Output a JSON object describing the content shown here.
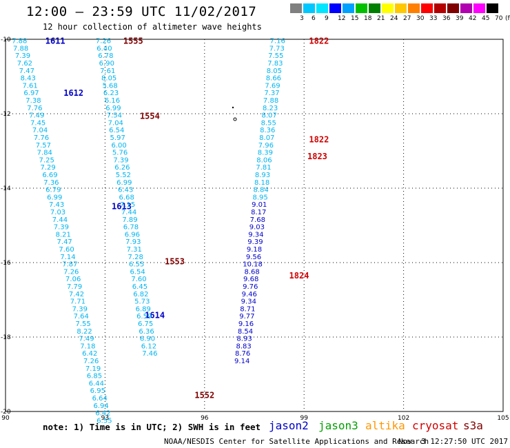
{
  "header": {
    "title": "12:00 – 23:59 UTC 11/02/2017",
    "subtitle": "12 hour collection of altimeter wave heights"
  },
  "scale": {
    "labels": [
      "3",
      "6",
      "9",
      "12",
      "15",
      "18",
      "21",
      "24",
      "27",
      "30",
      "33",
      "36",
      "39",
      "42",
      "45",
      "70",
      "(ft)"
    ],
    "colors": [
      "#808080",
      "#00c8ff",
      "#00e6ff",
      "#0000ff",
      "#00a0ff",
      "#00c000",
      "#008000",
      "#ffff00",
      "#ffc800",
      "#ff8000",
      "#ff0000",
      "#b40000",
      "#800000",
      "#b000b0",
      "#ff00ff",
      "#000000"
    ]
  },
  "map": {
    "lon_ticks": [
      "90",
      "93",
      "96",
      "99",
      "102",
      "105"
    ],
    "lat_ticks": [
      "-10",
      "-12",
      "-14",
      "-16",
      "-18",
      "-20"
    ],
    "lon_range": [
      90,
      105
    ],
    "lat_range": [
      -20,
      -10
    ]
  },
  "tracks": [
    {
      "id": "1611",
      "color": "#00b4f0",
      "label_color": "#0000c8",
      "label": {
        "text": "1611",
        "lon": 91.2,
        "lat": -10.03
      },
      "points": [
        {
          "v": "7.88",
          "lon": 90.42,
          "lat": -10.03
        },
        {
          "v": "7.88",
          "lon": 90.46,
          "lat": -10.23
        },
        {
          "v": "7.39",
          "lon": 90.52,
          "lat": -10.43
        },
        {
          "v": "7.62",
          "lon": 90.58,
          "lat": -10.63
        },
        {
          "v": "7.47",
          "lon": 90.64,
          "lat": -10.83
        },
        {
          "v": "8.43",
          "lon": 90.68,
          "lat": -11.03
        },
        {
          "v": "7.61",
          "lon": 90.74,
          "lat": -11.23
        },
        {
          "v": "6.97",
          "lon": 90.78,
          "lat": -11.43
        },
        {
          "v": "7.38",
          "lon": 90.84,
          "lat": -11.63
        },
        {
          "v": "7.76",
          "lon": 90.88,
          "lat": -11.83
        },
        {
          "v": "7.49",
          "lon": 90.94,
          "lat": -12.03
        },
        {
          "v": "7.45",
          "lon": 90.98,
          "lat": -12.23
        },
        {
          "v": "7.04",
          "lon": 91.04,
          "lat": -12.43
        },
        {
          "v": "7.76",
          "lon": 91.08,
          "lat": -12.63
        },
        {
          "v": "7.57",
          "lon": 91.14,
          "lat": -12.83
        },
        {
          "v": "7.84",
          "lon": 91.18,
          "lat": -13.03
        },
        {
          "v": "7.25",
          "lon": 91.24,
          "lat": -13.23
        },
        {
          "v": "7.29",
          "lon": 91.28,
          "lat": -13.43
        },
        {
          "v": "6.69",
          "lon": 91.34,
          "lat": -13.63
        },
        {
          "v": "7.36",
          "lon": 91.38,
          "lat": -13.83
        },
        {
          "v": "6.79",
          "lon": 91.44,
          "lat": -14.03
        },
        {
          "v": "6.99",
          "lon": 91.48,
          "lat": -14.23
        },
        {
          "v": "7.43",
          "lon": 91.54,
          "lat": -14.43
        },
        {
          "v": "7.03",
          "lon": 91.58,
          "lat": -14.63
        },
        {
          "v": "7.44",
          "lon": 91.64,
          "lat": -14.83
        },
        {
          "v": "7.39",
          "lon": 91.68,
          "lat": -15.03
        },
        {
          "v": "8.21",
          "lon": 91.74,
          "lat": -15.23
        },
        {
          "v": "7.47",
          "lon": 91.78,
          "lat": -15.43
        },
        {
          "v": "7.60",
          "lon": 91.84,
          "lat": -15.63
        },
        {
          "v": "7.14",
          "lon": 91.88,
          "lat": -15.83
        },
        {
          "v": "7.87",
          "lon": 91.94,
          "lat": -16.03
        }
      ]
    },
    {
      "id": "1612",
      "color": "#00b4f0",
      "label_color": "#0000c8",
      "label": {
        "text": "1612",
        "lon": 91.75,
        "lat": -11.43
      },
      "points": []
    },
    {
      "id": "1613",
      "color": "#00b4f0",
      "label_color": "#0000c8",
      "label": {
        "text": "1613",
        "lon": 93.2,
        "lat": -14.47
      },
      "points": [
        {
          "v": "7.26",
          "lon": 91.98,
          "lat": -16.23
        },
        {
          "v": "7.06",
          "lon": 92.04,
          "lat": -16.43
        },
        {
          "v": "7.79",
          "lon": 92.08,
          "lat": -16.63
        },
        {
          "v": "7.42",
          "lon": 92.14,
          "lat": -16.83
        },
        {
          "v": "7.71",
          "lon": 92.18,
          "lat": -17.03
        },
        {
          "v": "7.39",
          "lon": 92.24,
          "lat": -17.23
        },
        {
          "v": "7.64",
          "lon": 92.28,
          "lat": -17.43
        },
        {
          "v": "7.55",
          "lon": 92.34,
          "lat": -17.63
        },
        {
          "v": "8.22",
          "lon": 92.38,
          "lat": -17.83
        },
        {
          "v": "7.49",
          "lon": 92.44,
          "lat": -18.03
        },
        {
          "v": "7.18",
          "lon": 92.48,
          "lat": -18.23
        },
        {
          "v": "6.42",
          "lon": 92.54,
          "lat": -18.43
        },
        {
          "v": "7.26",
          "lon": 92.58,
          "lat": -18.63
        },
        {
          "v": "7.19",
          "lon": 92.64,
          "lat": -18.83
        },
        {
          "v": "6.85",
          "lon": 92.68,
          "lat": -19.03
        },
        {
          "v": "6.44",
          "lon": 92.74,
          "lat": -19.23
        },
        {
          "v": "6.95",
          "lon": 92.78,
          "lat": -19.43
        },
        {
          "v": "6.64",
          "lon": 92.84,
          "lat": -19.63
        },
        {
          "v": "6.94",
          "lon": 92.88,
          "lat": -19.83
        },
        {
          "v": "6.42",
          "lon": 92.94,
          "lat": -20.03
        },
        {
          "v": "6.55",
          "lon": 92.98,
          "lat": -20.23
        }
      ]
    },
    {
      "id": "1614",
      "color": "#00b4f0",
      "label_color": "#0000c8",
      "label": {
        "text": "1614",
        "lon": 94.2,
        "lat": -17.4
      },
      "points": []
    },
    {
      "id": "1555",
      "color": "#00b4f0",
      "label_color": "#800000",
      "label": {
        "text": "1555",
        "lon": 93.55,
        "lat": -10.03
      },
      "points": [
        {
          "v": "7.26",
          "lon": 92.95,
          "lat": -10.03
        },
        {
          "v": "6.40",
          "lon": 92.98,
          "lat": -10.23
        },
        {
          "v": "6.78",
          "lon": 93.02,
          "lat": -10.43
        },
        {
          "v": "6.90",
          "lon": 93.05,
          "lat": -10.63
        },
        {
          "v": "7.61",
          "lon": 93.08,
          "lat": -10.83
        },
        {
          "v": "8.05",
          "lon": 93.12,
          "lat": -11.03
        },
        {
          "v": "5.68",
          "lon": 93.15,
          "lat": -11.23
        },
        {
          "v": "6.23",
          "lon": 93.18,
          "lat": -11.43
        },
        {
          "v": "6.16",
          "lon": 93.22,
          "lat": -11.63
        },
        {
          "v": "6.99",
          "lon": 93.25,
          "lat": -11.83
        }
      ]
    },
    {
      "id": "1554",
      "color": "#00b4f0",
      "label_color": "#800000",
      "label": {
        "text": "1554",
        "lon": 94.05,
        "lat": -12.05
      },
      "points": [
        {
          "v": "7.54",
          "lon": 93.28,
          "lat": -12.03
        },
        {
          "v": "7.04",
          "lon": 93.32,
          "lat": -12.23
        },
        {
          "v": "6.54",
          "lon": 93.35,
          "lat": -12.43
        },
        {
          "v": "5.97",
          "lon": 93.38,
          "lat": -12.63
        },
        {
          "v": "6.00",
          "lon": 93.42,
          "lat": -12.83
        },
        {
          "v": "5.76",
          "lon": 93.45,
          "lat": -13.03
        },
        {
          "v": "7.39",
          "lon": 93.48,
          "lat": -13.23
        },
        {
          "v": "6.26",
          "lon": 93.52,
          "lat": -13.43
        },
        {
          "v": "5.52",
          "lon": 93.55,
          "lat": -13.63
        },
        {
          "v": "6.99",
          "lon": 93.58,
          "lat": -13.83
        },
        {
          "v": "6.43",
          "lon": 93.62,
          "lat": -14.03
        },
        {
          "v": "6.68",
          "lon": 93.65,
          "lat": -14.23
        },
        {
          "v": "7.15",
          "lon": 93.68,
          "lat": -14.43
        },
        {
          "v": "7.44",
          "lon": 93.72,
          "lat": -14.63
        },
        {
          "v": "7.89",
          "lon": 93.75,
          "lat": -14.83
        },
        {
          "v": "6.78",
          "lon": 93.78,
          "lat": -15.03
        }
      ]
    },
    {
      "id": "1553",
      "color": "#00b4f0",
      "label_color": "#800000",
      "label": {
        "text": "1553",
        "lon": 94.8,
        "lat": -15.95
      },
      "points": [
        {
          "v": "6.96",
          "lon": 93.82,
          "lat": -15.23
        },
        {
          "v": "7.93",
          "lon": 93.85,
          "lat": -15.43
        },
        {
          "v": "7.31",
          "lon": 93.88,
          "lat": -15.63
        },
        {
          "v": "7.28",
          "lon": 93.92,
          "lat": -15.83
        },
        {
          "v": "6.55",
          "lon": 93.95,
          "lat": -16.03
        },
        {
          "v": "6.54",
          "lon": 93.98,
          "lat": -16.23
        },
        {
          "v": "7.60",
          "lon": 94.02,
          "lat": -16.43
        },
        {
          "v": "6.45",
          "lon": 94.05,
          "lat": -16.63
        },
        {
          "v": "6.82",
          "lon": 94.08,
          "lat": -16.83
        },
        {
          "v": "5.73",
          "lon": 94.12,
          "lat": -17.03
        },
        {
          "v": "6.89",
          "lon": 94.15,
          "lat": -17.23
        },
        {
          "v": "6.59",
          "lon": 94.18,
          "lat": -17.43
        },
        {
          "v": "6.75",
          "lon": 94.22,
          "lat": -17.63
        },
        {
          "v": "6.36",
          "lon": 94.25,
          "lat": -17.83
        },
        {
          "v": "6.90",
          "lon": 94.28,
          "lat": -18.03
        },
        {
          "v": "6.12",
          "lon": 94.32,
          "lat": -18.23
        },
        {
          "v": "7.46",
          "lon": 94.35,
          "lat": -18.43
        }
      ]
    },
    {
      "id": "1552",
      "color": "#00b4f0",
      "label_color": "#800000",
      "label": {
        "text": "1552",
        "lon": 95.7,
        "lat": -19.55
      },
      "points": []
    },
    {
      "id": "1822",
      "color": "#00b4f0",
      "label_color": "#d00000",
      "label": {
        "text": "1822",
        "lon": 99.15,
        "lat": -10.03
      },
      "points": [
        {
          "v": "7.16",
          "lon": 98.2,
          "lat": -10.03
        },
        {
          "v": "7.73",
          "lon": 98.18,
          "lat": -10.23
        },
        {
          "v": "7.55",
          "lon": 98.15,
          "lat": -10.43
        },
        {
          "v": "7.83",
          "lon": 98.13,
          "lat": -10.63
        },
        {
          "v": "8.05",
          "lon": 98.1,
          "lat": -10.83
        },
        {
          "v": "8.66",
          "lon": 98.08,
          "lat": -11.03
        },
        {
          "v": "7.69",
          "lon": 98.05,
          "lat": -11.23
        },
        {
          "v": "7.37",
          "lon": 98.03,
          "lat": -11.43
        },
        {
          "v": "7.88",
          "lon": 98.0,
          "lat": -11.63
        },
        {
          "v": "8.23",
          "lon": 97.98,
          "lat": -11.83
        },
        {
          "v": "8.07",
          "lon": 97.95,
          "lat": -12.03
        },
        {
          "v": "8.55",
          "lon": 97.93,
          "lat": -12.23
        },
        {
          "v": "8.36",
          "lon": 97.9,
          "lat": -12.43
        }
      ]
    },
    {
      "id": "1822b",
      "color": "#00b4f0",
      "label_color": "#d00000",
      "label": {
        "text": "1822",
        "lon": 99.15,
        "lat": -12.68
      },
      "points": [
        {
          "v": "8.07",
          "lon": 97.88,
          "lat": -12.63
        },
        {
          "v": "7.96",
          "lon": 97.85,
          "lat": -12.83
        },
        {
          "v": "8.39",
          "lon": 97.83,
          "lat": -13.03
        },
        {
          "v": "8.06",
          "lon": 97.8,
          "lat": -13.23
        },
        {
          "v": "7.81",
          "lon": 97.78,
          "lat": -13.43
        },
        {
          "v": "8.93",
          "lon": 97.75,
          "lat": -13.63
        },
        {
          "v": "8.18",
          "lon": 97.73,
          "lat": -13.83
        },
        {
          "v": "8.84",
          "lon": 97.7,
          "lat": -14.03
        },
        {
          "v": "8.95",
          "lon": 97.68,
          "lat": -14.23
        }
      ]
    },
    {
      "id": "1823",
      "color": "#0000c8",
      "label_color": "#d00000",
      "label": {
        "text": "1823",
        "lon": 99.1,
        "lat": -13.13
      },
      "points": [
        {
          "v": "9.01",
          "lon": 97.65,
          "lat": -14.43
        },
        {
          "v": "8.17",
          "lon": 97.63,
          "lat": -14.63
        },
        {
          "v": "7.68",
          "lon": 97.6,
          "lat": -14.83
        },
        {
          "v": "9.03",
          "lon": 97.58,
          "lat": -15.03
        },
        {
          "v": "9.34",
          "lon": 97.55,
          "lat": -15.23
        },
        {
          "v": "9.39",
          "lon": 97.53,
          "lat": -15.43
        },
        {
          "v": "9.18",
          "lon": 97.5,
          "lat": -15.63
        },
        {
          "v": "9.56",
          "lon": 97.48,
          "lat": -15.83
        },
        {
          "v": "10.18",
          "lon": 97.45,
          "lat": -16.03
        },
        {
          "v": "8.68",
          "lon": 97.43,
          "lat": -16.23
        },
        {
          "v": "9.68",
          "lon": 97.4,
          "lat": -16.43
        },
        {
          "v": "9.76",
          "lon": 97.38,
          "lat": -16.63
        },
        {
          "v": "9.46",
          "lon": 97.35,
          "lat": -16.83
        },
        {
          "v": "9.34",
          "lon": 97.33,
          "lat": -17.03
        },
        {
          "v": "8.71",
          "lon": 97.3,
          "lat": -17.23
        },
        {
          "v": "9.77",
          "lon": 97.28,
          "lat": -17.43
        },
        {
          "v": "9.16",
          "lon": 97.25,
          "lat": -17.63
        },
        {
          "v": "8.54",
          "lon": 97.23,
          "lat": -17.83
        },
        {
          "v": "8.93",
          "lon": 97.2,
          "lat": -18.03
        },
        {
          "v": "8.83",
          "lon": 97.18,
          "lat": -18.23
        },
        {
          "v": "8.76",
          "lon": 97.15,
          "lat": -18.43
        },
        {
          "v": "9.14",
          "lon": 97.13,
          "lat": -18.63
        }
      ]
    },
    {
      "id": "1824",
      "color": "#0000c8",
      "label_color": "#d00000",
      "label": {
        "text": "1824",
        "lon": 98.55,
        "lat": -16.33
      },
      "points": []
    }
  ],
  "footer": {
    "note": "note: 1) Time is in UTC; 2) SWH is in feet",
    "legend": [
      {
        "label": "jason2",
        "color": "#0000c8"
      },
      {
        "label": "jason3",
        "color": "#00a000"
      },
      {
        "label": "altika",
        "color": "#ff9600"
      },
      {
        "label": "cryosat",
        "color": "#d00000"
      },
      {
        "label": "s3a",
        "color": "#800000"
      }
    ],
    "credit": "NOAA/NESDIS Center for Satellite Applications and Research",
    "timestamp": "Nov  3 12:27:50 UTC 2017"
  }
}
